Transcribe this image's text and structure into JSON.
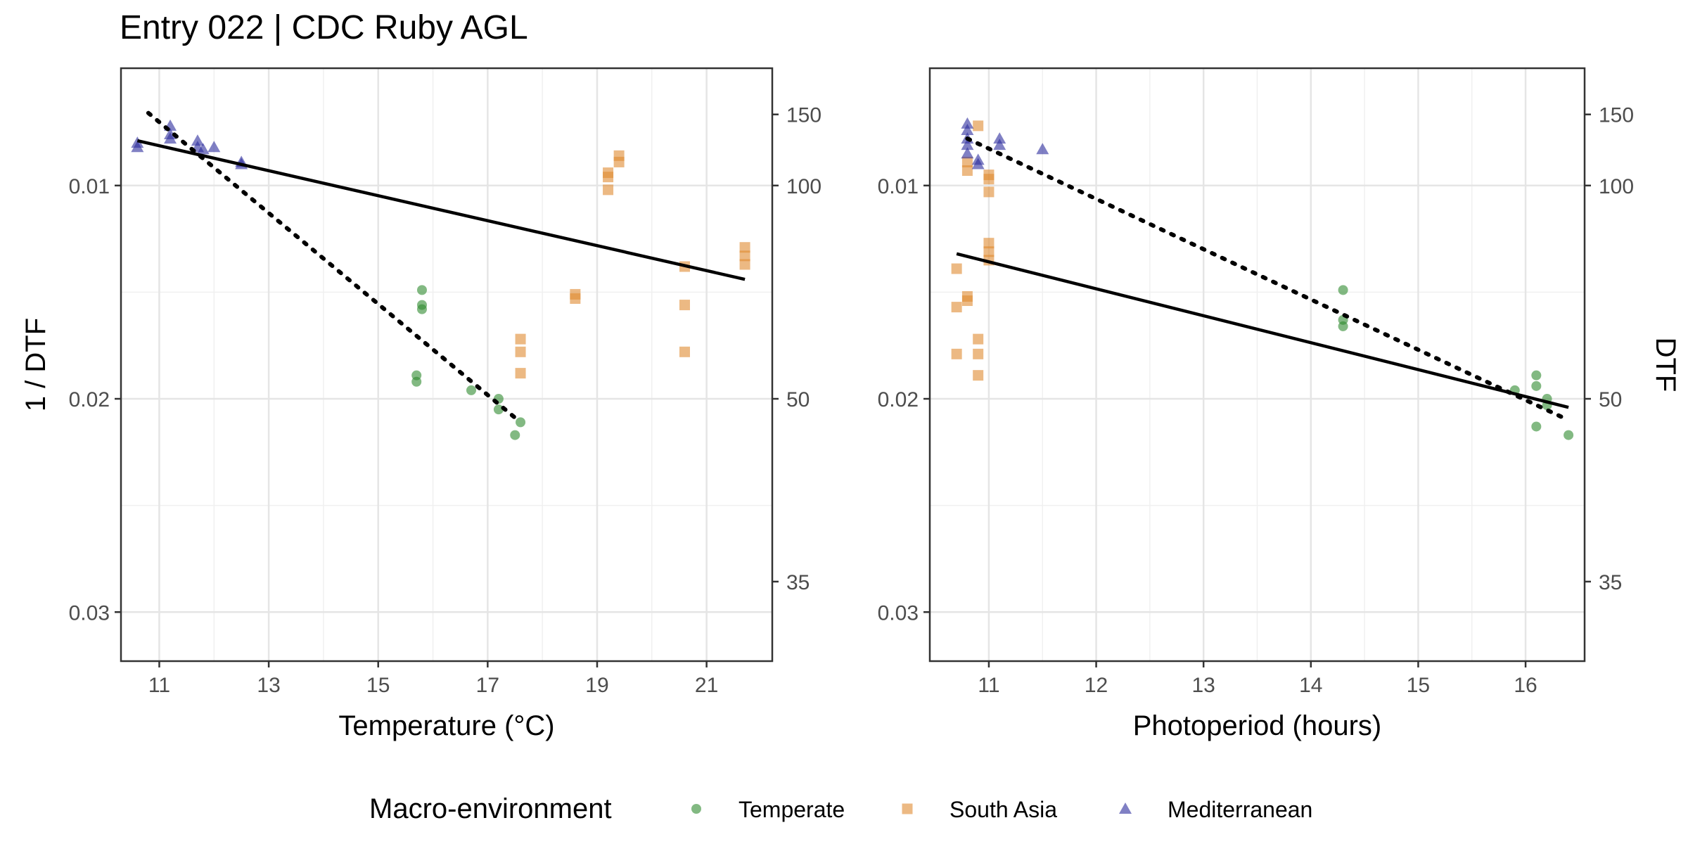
{
  "title": "Entry 022 | CDC Ruby AGL",
  "colors": {
    "Temperate": "#2e8b2e",
    "South Asia": "#e08a30",
    "Mediterranean": "#2b2b9c"
  },
  "legend": {
    "title": "Macro-environment",
    "items": [
      {
        "label": "Temperate",
        "shape": "circle"
      },
      {
        "label": "South Asia",
        "shape": "square"
      },
      {
        "label": "Mediterranean",
        "shape": "triangle"
      }
    ]
  },
  "chart_data": [
    {
      "type": "scatter",
      "xlabel": "Temperature (°C)",
      "ylabel": "1 / DTF",
      "y2label": "",
      "xlim": [
        10.3,
        22.2
      ],
      "ylim": [
        0.0323,
        0.0045
      ],
      "xticks": [
        11,
        13,
        15,
        17,
        19,
        21
      ],
      "yticks": [
        0.01,
        0.02,
        0.03
      ],
      "y2ticks": [
        150,
        100,
        50,
        35
      ],
      "series": [
        {
          "group": "Temperate",
          "points": [
            [
              15.8,
              0.0149
            ],
            [
              15.8,
              0.0156
            ],
            [
              15.8,
              0.0158
            ],
            [
              15.7,
              0.0189
            ],
            [
              15.7,
              0.0192
            ],
            [
              16.7,
              0.0196
            ],
            [
              17.2,
              0.02
            ],
            [
              17.2,
              0.0205
            ],
            [
              17.5,
              0.0217
            ],
            [
              17.6,
              0.0211
            ]
          ]
        },
        {
          "group": "South Asia",
          "points": [
            [
              17.6,
              0.0172
            ],
            [
              17.6,
              0.0178
            ],
            [
              17.6,
              0.0188
            ],
            [
              18.6,
              0.0151
            ],
            [
              18.6,
              0.0153
            ],
            [
              19.2,
              0.0094
            ],
            [
              19.2,
              0.0096
            ],
            [
              19.2,
              0.0102
            ],
            [
              19.4,
              0.0086
            ],
            [
              19.4,
              0.0089
            ],
            [
              20.6,
              0.0138
            ],
            [
              20.6,
              0.0156
            ],
            [
              20.6,
              0.0178
            ],
            [
              21.7,
              0.0129
            ],
            [
              21.7,
              0.0133
            ],
            [
              21.7,
              0.0137
            ]
          ]
        },
        {
          "group": "Mediterranean",
          "points": [
            [
              10.6,
              0.008
            ],
            [
              10.6,
              0.0082
            ],
            [
              11.2,
              0.0072
            ],
            [
              11.2,
              0.0076
            ],
            [
              11.2,
              0.0078
            ],
            [
              11.7,
              0.0079
            ],
            [
              11.7,
              0.0082
            ],
            [
              11.8,
              0.0083
            ],
            [
              12.0,
              0.0082
            ],
            [
              12.5,
              0.0089
            ],
            [
              12.5,
              0.009
            ]
          ]
        }
      ],
      "fits": [
        {
          "style": "solid",
          "x": [
            10.6,
            21.7
          ],
          "y": [
            0.0079,
            0.0144
          ]
        },
        {
          "style": "dotted",
          "x": [
            10.8,
            17.6
          ],
          "y": [
            0.0066,
            0.0211
          ]
        }
      ]
    },
    {
      "type": "scatter",
      "xlabel": "Photoperiod (hours)",
      "ylabel": "",
      "y2label": "DTF",
      "xlim": [
        10.45,
        16.55
      ],
      "ylim": [
        0.0323,
        0.0045
      ],
      "xticks": [
        11,
        12,
        13,
        14,
        15,
        16
      ],
      "yticks": [
        0.01,
        0.02,
        0.03
      ],
      "y2ticks": [
        150,
        100,
        50,
        35
      ],
      "series": [
        {
          "group": "Temperate",
          "points": [
            [
              14.3,
              0.0149
            ],
            [
              14.3,
              0.0163
            ],
            [
              14.3,
              0.0166
            ],
            [
              15.9,
              0.0196
            ],
            [
              16.1,
              0.0189
            ],
            [
              16.1,
              0.0194
            ],
            [
              16.1,
              0.0213
            ],
            [
              16.2,
              0.02
            ],
            [
              16.2,
              0.0203
            ],
            [
              16.4,
              0.0217
            ]
          ]
        },
        {
          "group": "South Asia",
          "points": [
            [
              10.7,
              0.0139
            ],
            [
              10.7,
              0.0157
            ],
            [
              10.7,
              0.0179
            ],
            [
              10.8,
              0.0152
            ],
            [
              10.8,
              0.0154
            ],
            [
              10.8,
              0.0089
            ],
            [
              10.8,
              0.0093
            ],
            [
              10.9,
              0.0072
            ],
            [
              10.9,
              0.0172
            ],
            [
              10.9,
              0.0179
            ],
            [
              10.9,
              0.0189
            ],
            [
              11.0,
              0.0095
            ],
            [
              11.0,
              0.0097
            ],
            [
              11.0,
              0.0103
            ],
            [
              11.0,
              0.0127
            ],
            [
              11.0,
              0.0131
            ],
            [
              11.0,
              0.0135
            ]
          ]
        },
        {
          "group": "Mediterranean",
          "points": [
            [
              10.8,
              0.0071
            ],
            [
              10.8,
              0.0074
            ],
            [
              10.8,
              0.0078
            ],
            [
              10.8,
              0.0081
            ],
            [
              10.8,
              0.0085
            ],
            [
              10.9,
              0.0088
            ],
            [
              10.9,
              0.009
            ],
            [
              11.1,
              0.0078
            ],
            [
              11.1,
              0.0081
            ],
            [
              11.5,
              0.0083
            ]
          ]
        }
      ],
      "fits": [
        {
          "style": "solid",
          "x": [
            10.7,
            16.4
          ],
          "y": [
            0.0132,
            0.0204
          ]
        },
        {
          "style": "dotted",
          "x": [
            10.8,
            16.4
          ],
          "y": [
            0.0078,
            0.021
          ]
        }
      ]
    }
  ]
}
